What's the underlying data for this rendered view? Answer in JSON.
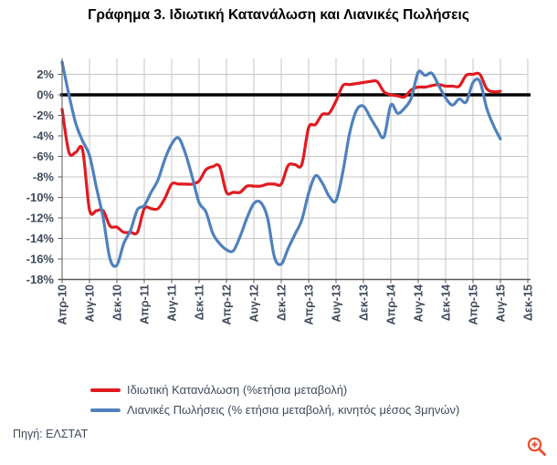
{
  "title": "Γράφημα 3. Ιδιωτική Κατανάλωση και Λιανικές Πωλήσεις",
  "source": "Πηγή: ΕΛΣΤΑΤ",
  "colors": {
    "background": "#ffffff",
    "grid": "#c6c6c6",
    "axis_line": "#595959",
    "zero_line": "#000000",
    "axis_text": "#3f4a5c",
    "title_text": "#000000",
    "legend_text": "#3f4a5c",
    "series_red": "#e01b20",
    "series_blue": "#4f81bd",
    "zoom_icon": "#e8502d"
  },
  "legend": [
    {
      "label": "Ιδιωτική Κατανάλωση (%ετήσια μεταβολή)",
      "color": "#e01b20",
      "key": "private-consumption"
    },
    {
      "label": "Λιανικές Πωλήσεις (% ετήσια μεταβολή, κινητός μέσος 3μηνών)",
      "color": "#4f81bd",
      "key": "retail-sales"
    }
  ],
  "chart_data": {
    "type": "line",
    "title": "Γράφημα 3. Ιδιωτική Κατανάλωση και Λιανικές Πωλήσεις",
    "x_frequency": "monthly",
    "x_start_label": "Απρ-10",
    "x_end_label": "Αυγ-15",
    "x_tick_labels": [
      "Απρ-10",
      "Αυγ-10",
      "Δεκ-10",
      "Απρ-11",
      "Αυγ-11",
      "Δεκ-11",
      "Απρ-12",
      "Αυγ-12",
      "Δεκ-12",
      "Απρ-13",
      "Αυγ-13",
      "Δεκ-13",
      "Απρ-14",
      "Αυγ-14",
      "Δεκ-14",
      "Απρ-15",
      "Αυγ-15",
      "Δεκ-15"
    ],
    "y_tick_labels": [
      "2%",
      "0%",
      "-2%",
      "-4%",
      "-6%",
      "-8%",
      "-10%",
      "-12%",
      "-14%",
      "-16%",
      "-18%"
    ],
    "ylabel": "",
    "xlabel": "",
    "ylim": [
      -18,
      3.4
    ],
    "y_major_unit_pct": 2,
    "grid": true,
    "legend_position": "bottom",
    "series": [
      {
        "name": "Ιδιωτική Κατανάλωση (%ετήσια μεταβολή)",
        "key": "private-consumption",
        "color": "#e01b20",
        "values": [
          -1.4,
          -5.6,
          -5.6,
          -5.4,
          -11.2,
          -11.3,
          -11.3,
          -12.8,
          -12.9,
          -13.4,
          -13.4,
          -13.4,
          -11.1,
          -11.1,
          -11.1,
          -10.1,
          -8.7,
          -8.7,
          -8.7,
          -8.7,
          -8.4,
          -7.3,
          -7.0,
          -7.0,
          -9.5,
          -9.5,
          -9.5,
          -8.9,
          -8.9,
          -8.9,
          -8.7,
          -8.7,
          -8.7,
          -6.9,
          -6.8,
          -6.8,
          -3.2,
          -2.9,
          -1.9,
          -1.8,
          -0.6,
          0.9,
          1.0,
          1.1,
          1.2,
          1.3,
          1.3,
          0.3,
          0.0,
          -0.1,
          -0.2,
          0.5,
          0.75,
          0.75,
          0.9,
          1.0,
          0.85,
          0.85,
          0.85,
          1.9,
          2.0,
          2.0,
          0.6,
          0.3,
          0.35
        ]
      },
      {
        "name": "Λιανικές Πωλήσεις (% ετήσια μεταβολή, κινητός μέσος 3μηνών)",
        "key": "retail-sales",
        "color": "#4f81bd",
        "values": [
          3.2,
          0.0,
          -2.8,
          -4.5,
          -5.9,
          -9.0,
          -12.0,
          -16.0,
          -16.6,
          -14.5,
          -13.2,
          -11.2,
          -10.8,
          -9.5,
          -8.3,
          -6.3,
          -4.8,
          -4.2,
          -5.7,
          -8.0,
          -10.5,
          -11.4,
          -13.5,
          -14.5,
          -15.1,
          -15.2,
          -13.8,
          -12.0,
          -10.6,
          -10.5,
          -12.0,
          -15.8,
          -16.5,
          -15.0,
          -13.6,
          -12.2,
          -9.6,
          -7.9,
          -8.6,
          -9.9,
          -10.3,
          -7.5,
          -3.7,
          -1.5,
          -1.1,
          -2.2,
          -3.3,
          -4.1,
          -1.0,
          -1.8,
          -1.3,
          -0.3,
          2.2,
          1.9,
          2.1,
          0.9,
          -0.3,
          -1.0,
          -0.4,
          -0.7,
          1.2,
          1.3,
          -1.3,
          -3.0,
          -4.3
        ]
      }
    ]
  }
}
